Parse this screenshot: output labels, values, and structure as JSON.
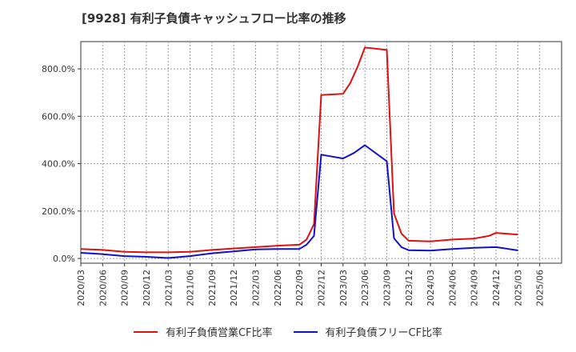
{
  "chart_data": {
    "type": "line",
    "title": "[9928]  有利子負債キャッシュフロー比率の推移",
    "xlabel": "",
    "ylabel": "",
    "ylim": [
      -20,
      915
    ],
    "yticks": [
      0,
      200,
      400,
      600,
      800
    ],
    "ytick_labels": [
      "0.0%",
      "200.0%",
      "400.0%",
      "600.0%",
      "800.0%"
    ],
    "x_tick_labels": [
      "2020/03",
      "2020/06",
      "2020/09",
      "2020/12",
      "2021/03",
      "2021/06",
      "2021/09",
      "2021/12",
      "2022/03",
      "2022/06",
      "2022/09",
      "2022/12",
      "2023/03",
      "2023/06",
      "2023/09",
      "2023/12",
      "2024/03",
      "2024/06",
      "2024/09",
      "2024/12",
      "2025/03",
      "2025/06"
    ],
    "grid": true,
    "legend_position": "bottom",
    "series": [
      {
        "name": "有利子負債営業CF比率",
        "color": "#dd1111",
        "points": [
          [
            0,
            40
          ],
          [
            1,
            36
          ],
          [
            2,
            28
          ],
          [
            3,
            26
          ],
          [
            4,
            26
          ],
          [
            5,
            28
          ],
          [
            6,
            36
          ],
          [
            7,
            42
          ],
          [
            8,
            48
          ],
          [
            9,
            54
          ],
          [
            10,
            58
          ],
          [
            10.33,
            80
          ],
          [
            10.67,
            145
          ],
          [
            11,
            690
          ],
          [
            12,
            695
          ],
          [
            12.33,
            740
          ],
          [
            12.67,
            810
          ],
          [
            13,
            890
          ],
          [
            14,
            880
          ],
          [
            14.33,
            190
          ],
          [
            14.67,
            105
          ],
          [
            15,
            75
          ],
          [
            16,
            72
          ],
          [
            17,
            80
          ],
          [
            18,
            84
          ],
          [
            18.67,
            95
          ],
          [
            19,
            108
          ],
          [
            20,
            101
          ]
        ]
      },
      {
        "name": "有利子負債フリーCF比率",
        "color": "#1111cc",
        "points": [
          [
            0,
            24
          ],
          [
            1,
            18
          ],
          [
            2,
            10
          ],
          [
            3,
            7
          ],
          [
            4,
            2
          ],
          [
            5,
            10
          ],
          [
            6,
            22
          ],
          [
            7,
            30
          ],
          [
            8,
            38
          ],
          [
            9,
            40
          ],
          [
            10,
            40
          ],
          [
            10.33,
            58
          ],
          [
            10.67,
            95
          ],
          [
            11,
            438
          ],
          [
            12,
            422
          ],
          [
            12.5,
            445
          ],
          [
            13,
            478
          ],
          [
            14,
            410
          ],
          [
            14.33,
            85
          ],
          [
            14.67,
            48
          ],
          [
            15,
            35
          ],
          [
            16,
            33
          ],
          [
            17,
            40
          ],
          [
            18,
            45
          ],
          [
            19,
            48
          ],
          [
            20,
            34
          ]
        ]
      }
    ]
  }
}
